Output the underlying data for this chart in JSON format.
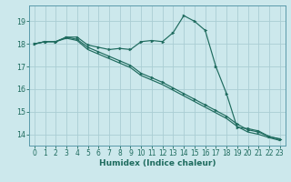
{
  "xlabel": "Humidex (Indice chaleur)",
  "bg_color": "#cce8ec",
  "grid_color": "#aacdd4",
  "line_color": "#1e6b5e",
  "spine_color": "#5a9aaa",
  "tick_color": "#1e6b5e",
  "xlim": [
    -0.5,
    23.5
  ],
  "ylim": [
    13.5,
    19.7
  ],
  "yticks": [
    14,
    15,
    16,
    17,
    18,
    19
  ],
  "xticks": [
    0,
    1,
    2,
    3,
    4,
    5,
    6,
    7,
    8,
    9,
    10,
    11,
    12,
    13,
    14,
    15,
    16,
    17,
    18,
    19,
    20,
    21,
    22,
    23
  ],
  "line1_x": [
    0,
    1,
    2,
    3,
    4,
    5,
    6,
    7,
    8,
    9,
    10,
    11,
    12,
    13,
    14,
    15,
    16,
    17,
    18,
    19,
    20,
    21,
    22,
    23
  ],
  "line1_y": [
    18.0,
    18.1,
    18.1,
    18.3,
    18.3,
    17.95,
    17.85,
    17.75,
    17.8,
    17.75,
    18.1,
    18.15,
    18.1,
    18.5,
    19.25,
    19.0,
    18.6,
    17.0,
    15.8,
    14.3,
    14.25,
    14.15,
    13.9,
    13.8
  ],
  "line2_x": [
    0,
    1,
    2,
    3,
    4,
    5,
    6,
    7,
    8,
    9,
    10,
    11,
    12,
    13,
    14,
    15,
    16,
    17,
    18,
    19,
    20,
    21,
    22,
    23
  ],
  "line2_y": [
    18.0,
    18.1,
    18.1,
    18.3,
    18.2,
    17.85,
    17.65,
    17.45,
    17.25,
    17.05,
    16.7,
    16.5,
    16.3,
    16.05,
    15.8,
    15.55,
    15.3,
    15.05,
    14.8,
    14.45,
    14.2,
    14.1,
    13.9,
    13.78
  ],
  "line3_x": [
    0,
    1,
    2,
    3,
    4,
    5,
    6,
    7,
    8,
    9,
    10,
    11,
    12,
    13,
    14,
    15,
    16,
    17,
    18,
    19,
    20,
    21,
    22,
    23
  ],
  "line3_y": [
    18.0,
    18.1,
    18.1,
    18.25,
    18.15,
    17.75,
    17.55,
    17.35,
    17.15,
    16.95,
    16.6,
    16.4,
    16.2,
    15.95,
    15.7,
    15.45,
    15.2,
    14.95,
    14.7,
    14.35,
    14.1,
    14.0,
    13.85,
    13.73
  ],
  "xlabel_fontsize": 6.5,
  "tick_fontsize": 5.5
}
